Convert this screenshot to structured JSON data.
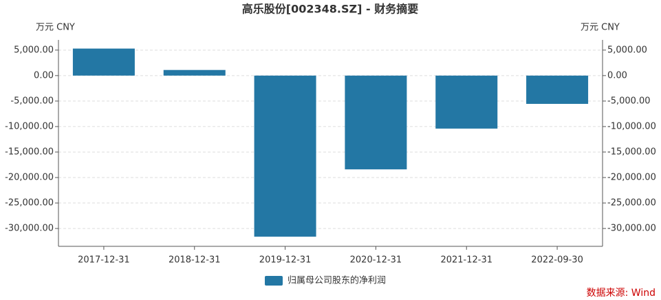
{
  "chart_data": {
    "type": "bar",
    "title": "高乐股份[002348.SZ] - 财务摘要",
    "y_label": "万元  CNY",
    "y2_label": "万元  CNY",
    "categories": [
      "2017-12-31",
      "2018-12-31",
      "2019-12-31",
      "2020-12-31",
      "2021-12-31",
      "2022-09-30"
    ],
    "series": [
      {
        "name": "归属母公司股东的净利润",
        "color": "#2377a4",
        "values": [
          5300,
          1100,
          -31600,
          -18400,
          -10400,
          -5550
        ]
      }
    ],
    "ylim": [
      -33500,
      7000
    ],
    "yticks": [
      {
        "value": 5000,
        "label": "5,000.00"
      },
      {
        "value": 0,
        "label": "0.00"
      },
      {
        "value": -5000,
        "label": "-5,000.00"
      },
      {
        "value": -10000,
        "label": "-10,000.00"
      },
      {
        "value": -15000,
        "label": "-15,000.00"
      },
      {
        "value": -20000,
        "label": "-20,000.00"
      },
      {
        "value": -25000,
        "label": "-25,000.00"
      },
      {
        "value": -30000,
        "label": "-30,000.00"
      }
    ],
    "y2lim": [
      -33500,
      7000
    ],
    "y2ticks": [
      {
        "value": 5000,
        "label": "5,000.00"
      },
      {
        "value": 0,
        "label": "0.00"
      },
      {
        "value": -5000,
        "label": "-5,000.00"
      },
      {
        "value": -10000,
        "label": "-10,000.00"
      },
      {
        "value": -15000,
        "label": "-15,000.00"
      },
      {
        "value": -20000,
        "label": "-20,000.00"
      },
      {
        "value": -25000,
        "label": "-25,000.00"
      },
      {
        "value": -30000,
        "label": "-30,000.00"
      }
    ],
    "grid": true,
    "source": "数据来源: Wind"
  }
}
